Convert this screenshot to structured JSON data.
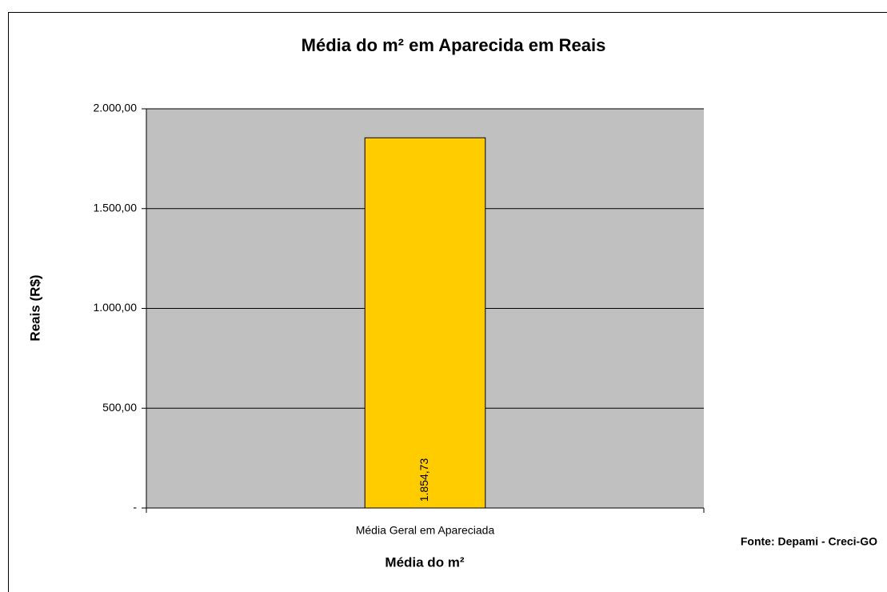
{
  "chart_data": {
    "type": "bar",
    "title": "Média do m² em Aparecida em Reais",
    "x_label": "Média do m²",
    "y_label": "Reais (R$)",
    "annotation": "Fonte: Depami - Creci-GO",
    "categories": [
      "Média Geral em Apareciada"
    ],
    "values": [
      1854.73
    ],
    "value_labels": [
      "1.854,73"
    ],
    "color": "#ffcc00",
    "ylim": [
      0,
      2000
    ],
    "yticks": [
      {
        "value": 0,
        "label": "-"
      },
      {
        "value": 500,
        "label": "500,00"
      },
      {
        "value": 1000,
        "label": "1.000,00"
      },
      {
        "value": 1500,
        "label": "1.500,00"
      },
      {
        "value": 2000,
        "label": "2.000,00"
      }
    ],
    "grid": true
  }
}
